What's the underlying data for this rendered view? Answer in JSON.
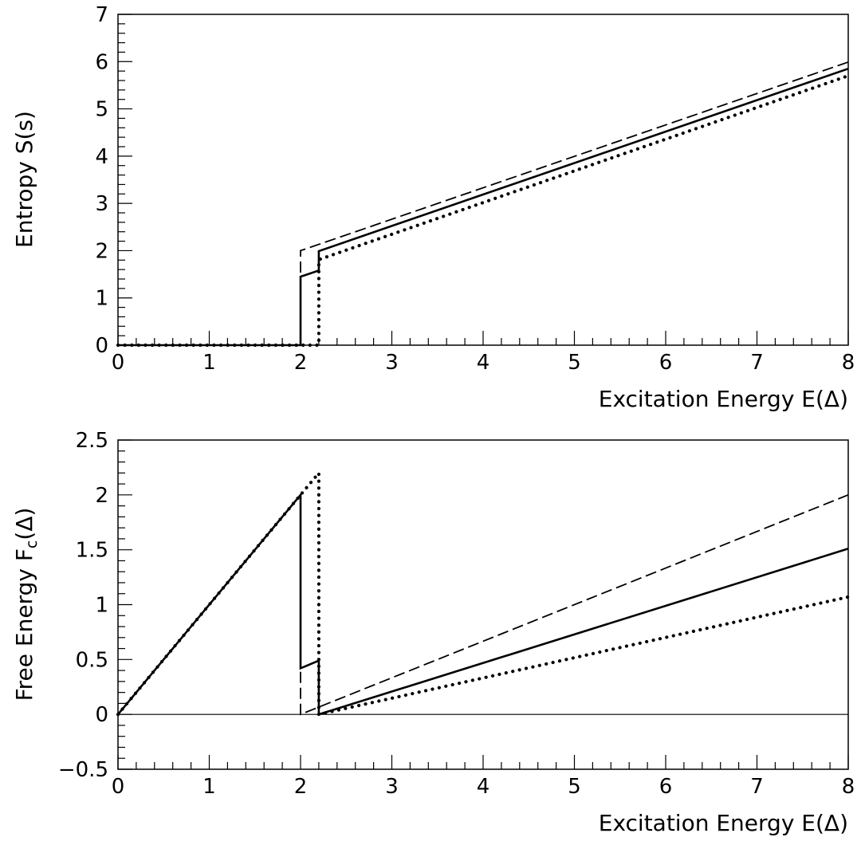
{
  "chart_data": [
    {
      "type": "line",
      "title": "",
      "xlabel": "Excitation Energy E(Δ)",
      "ylabel": "Entropy S(s)",
      "xlim": [
        0,
        8
      ],
      "ylim": [
        0,
        7
      ],
      "x_ticks": [
        "0",
        "1",
        "2",
        "3",
        "4",
        "5",
        "6",
        "7",
        "8"
      ],
      "y_ticks": [
        "0",
        "1",
        "2",
        "3",
        "4",
        "5",
        "6",
        "7"
      ],
      "x_minor_step": 0.2,
      "y_minor_step": 0.2,
      "grid": false,
      "reference_lines": [],
      "series": [
        {
          "style": "dashed",
          "color": "#000000",
          "points": [
            [
              0,
              0
            ],
            [
              1.98,
              0
            ],
            [
              2.0,
              0
            ],
            [
              2.0,
              2.0
            ],
            [
              8.0,
              5.99
            ]
          ]
        },
        {
          "style": "solid",
          "color": "#000000",
          "points": [
            [
              0,
              0
            ],
            [
              2.0,
              0
            ],
            [
              2.0,
              1.45
            ],
            [
              2.2,
              1.58
            ],
            [
              2.2,
              1.99
            ],
            [
              8.0,
              5.85
            ]
          ]
        },
        {
          "style": "dotted",
          "color": "#000000",
          "points": [
            [
              0,
              0
            ],
            [
              2.2,
              0
            ],
            [
              2.2,
              1.81
            ],
            [
              8.0,
              5.7
            ]
          ]
        }
      ]
    },
    {
      "type": "line",
      "title": "",
      "xlabel": "Excitation Energy E(Δ)",
      "ylabel": "Free Energy Fₙ(Δ)",
      "ylabel_main": "Free Energy F",
      "ylabel_sub": "c",
      "ylabel_tail": "(Δ)",
      "xlim": [
        0,
        8
      ],
      "ylim": [
        -0.5,
        2.5
      ],
      "x_ticks": [
        "0",
        "1",
        "2",
        "3",
        "4",
        "5",
        "6",
        "7",
        "8"
      ],
      "y_ticks": [
        "−0.5",
        "0",
        "0.5",
        "1",
        "1.5",
        "2",
        "2.5"
      ],
      "x_minor_step": 0.2,
      "y_minor_step": 0.1,
      "grid": false,
      "reference_lines": [
        {
          "axis": "y",
          "value": 0
        }
      ],
      "series": [
        {
          "style": "dashed",
          "color": "#000000",
          "points": [
            [
              0,
              0
            ],
            [
              2.0,
              2.0
            ],
            [
              2.0,
              0.0
            ],
            [
              8.0,
              2.0
            ]
          ]
        },
        {
          "style": "solid",
          "color": "#000000",
          "points": [
            [
              0,
              0
            ],
            [
              2.0,
              2.0
            ],
            [
              2.0,
              0.42
            ],
            [
              2.2,
              0.49
            ],
            [
              2.2,
              0.0
            ],
            [
              8.0,
              1.51
            ]
          ]
        },
        {
          "style": "dotted",
          "color": "#000000",
          "points": [
            [
              0,
              0
            ],
            [
              2.2,
              2.2
            ],
            [
              2.2,
              0.0
            ],
            [
              8.0,
              1.07
            ]
          ]
        }
      ]
    }
  ]
}
